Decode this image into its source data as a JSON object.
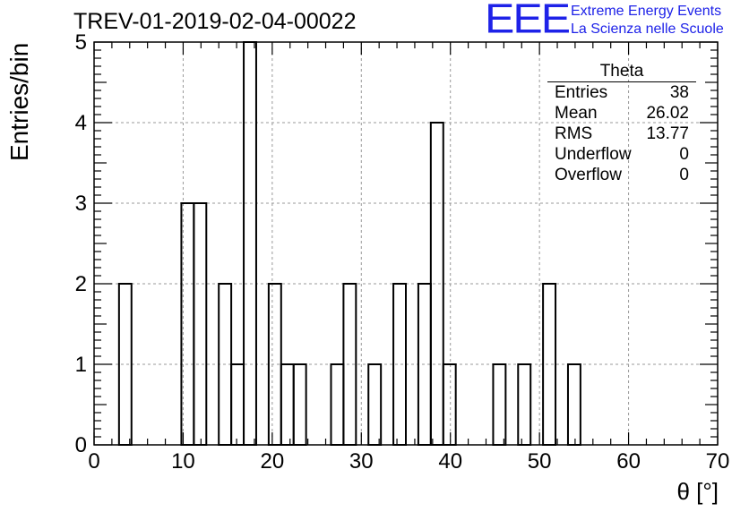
{
  "page_title": "TREV-01-2019-02-04-00022",
  "logo": {
    "mark": "EEE",
    "line1": "Extreme Energy Events",
    "line2": "La Scienza nelle Scuole",
    "color": "#1e22e8"
  },
  "stats_box": {
    "title": "Theta",
    "rows": [
      {
        "label": "Entries",
        "value": "38"
      },
      {
        "label": "Mean",
        "value": "26.02"
      },
      {
        "label": "RMS",
        "value": "13.77"
      },
      {
        "label": "Underflow",
        "value": "0"
      },
      {
        "label": "Overflow",
        "value": "0"
      }
    ]
  },
  "chart_data": {
    "type": "bar",
    "style": "step-histogram",
    "title": "TREV-01-2019-02-04-00022",
    "xlabel": "θ [°]",
    "ylabel": "Entries/bin",
    "xlim": [
      0,
      70
    ],
    "ylim": [
      0,
      5
    ],
    "x_ticks": [
      0,
      10,
      20,
      30,
      40,
      50,
      60,
      70
    ],
    "y_ticks": [
      0,
      1,
      2,
      3,
      4,
      5
    ],
    "grid": true,
    "bin_width": 1.4,
    "bin_edges_start": 0,
    "values": [
      0,
      0,
      2,
      0,
      0,
      0,
      0,
      3,
      3,
      0,
      2,
      1,
      5,
      0,
      2,
      1,
      1,
      0,
      0,
      1,
      2,
      0,
      1,
      0,
      2,
      0,
      2,
      4,
      1,
      0,
      0,
      0,
      1,
      0,
      1,
      0,
      2,
      0,
      1,
      0,
      0,
      0,
      0,
      0,
      0,
      0,
      0,
      0,
      0,
      0
    ]
  }
}
